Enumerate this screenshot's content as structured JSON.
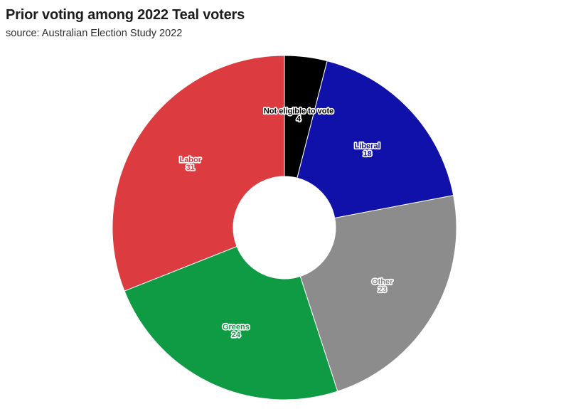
{
  "header": {
    "title": "Prior voting among 2022 Teal voters",
    "subtitle": "source: Australian Election Study 2022"
  },
  "chart_data": {
    "type": "pie",
    "subtype": "donut",
    "title": "Prior voting among 2022 Teal voters",
    "source_note": "source: Australian Election Study 2022",
    "start_angle_deg": 0,
    "direction": "clockwise",
    "total": 100,
    "legend": "none",
    "label_placement": "inside-slice",
    "label_halo_color": "#ffffff",
    "slices": [
      {
        "label": "Not eligible to vote",
        "value": 4,
        "color": "#000000"
      },
      {
        "label": "Liberal",
        "value": 18,
        "color": "#0f11a8"
      },
      {
        "label": "Other",
        "value": 23,
        "color": "#8c8c8c"
      },
      {
        "label": "Greens",
        "value": 24,
        "color": "#0f9b44"
      },
      {
        "label": "Labor",
        "value": 31,
        "color": "#dc3b40"
      }
    ]
  }
}
